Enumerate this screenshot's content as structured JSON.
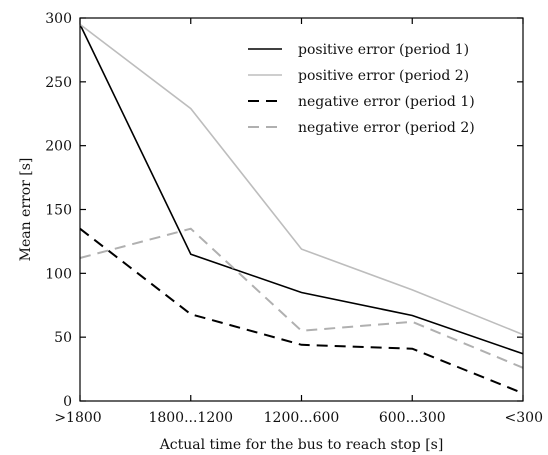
{
  "chart_data": {
    "type": "line",
    "title": "",
    "xlabel": "Actual time for the bus to reach stop [s]",
    "ylabel": "Mean error [s]",
    "categories": [
      ">1800",
      "1800...1200",
      "1200...600",
      "600...300",
      "<300"
    ],
    "ylim": [
      0,
      300
    ],
    "yticks": [
      0,
      50,
      100,
      150,
      200,
      250,
      300
    ],
    "grid": false,
    "legend_position": "top-right",
    "series": [
      {
        "name": "positive error (period 1)",
        "values": [
          295,
          115,
          85,
          67,
          37
        ],
        "color": "#000000",
        "dash": "solid"
      },
      {
        "name": "positive error (period 2)",
        "values": [
          295,
          229,
          119,
          87,
          52
        ],
        "color": "#bdbdbd",
        "dash": "solid"
      },
      {
        "name": "negative error (period 1)",
        "values": [
          135,
          68,
          44,
          41,
          6
        ],
        "color": "#000000",
        "dash": "dashed"
      },
      {
        "name": "negative error (period 2)",
        "values": [
          112,
          135,
          55,
          62,
          26
        ],
        "color": "#b0b0b0",
        "dash": "dashed"
      }
    ]
  }
}
